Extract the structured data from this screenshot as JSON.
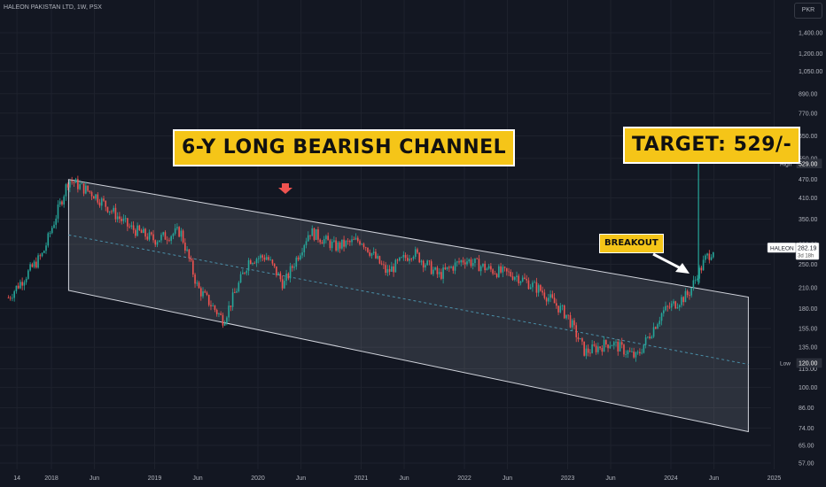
{
  "header": {
    "title": "HALEON PAKISTAN LTD, 1W, PSX",
    "currency": "PKR"
  },
  "annotations": {
    "channel_label": "6-Y LONG BEARISH CHANNEL",
    "target_label": "TARGET: 529/-",
    "breakout_label": "BREAKOUT"
  },
  "colors": {
    "background": "#131722",
    "up": "#26a69a",
    "down": "#ef5350",
    "highlight": "#f5c518",
    "channel": "#d1d4dc"
  },
  "chart_data": {
    "type": "candlestick",
    "symbol": "HALEON",
    "interval": "1W",
    "scale": "log",
    "ylim": [
      55,
      1500
    ],
    "y_ticks": [
      57,
      65,
      74,
      86,
      100,
      115,
      135,
      155,
      180,
      210,
      250,
      290,
      350,
      410,
      470,
      550,
      650,
      770,
      890,
      1050,
      1200,
      1400
    ],
    "y_tick_labels": [
      "57.00",
      "65.00",
      "74.00",
      "86.00",
      "100.00",
      "115.00",
      "135.00",
      "155.00",
      "180.00",
      "210.00",
      "250.00",
      "290.00",
      "350.00",
      "410.00",
      "470.00",
      "550.00",
      "650.00",
      "770.00",
      "890.00",
      "1,050.00",
      "1,200.00",
      "1,400.00"
    ],
    "x_ticks": [
      "14",
      "2018",
      "Jun",
      "2019",
      "Jun",
      "2020",
      "Jun",
      "2021",
      "Jun",
      "2022",
      "Jun",
      "2023",
      "Jun",
      "2024",
      "Jun",
      "2025"
    ],
    "markers": [
      {
        "label": "High",
        "value": "529.00"
      },
      {
        "label": "Low",
        "value": "120.00"
      }
    ],
    "last_price": {
      "symbol": "HALEON",
      "value": "282.19",
      "countdown": "3d 18h"
    },
    "approx_close_path": [
      {
        "t": "2017-08",
        "close": 195
      },
      {
        "t": "2017-12",
        "close": 270
      },
      {
        "t": "2018-03",
        "close": 470
      },
      {
        "t": "2018-06",
        "close": 420
      },
      {
        "t": "2018-10",
        "close": 330
      },
      {
        "t": "2019-01",
        "close": 300
      },
      {
        "t": "2019-04",
        "close": 320
      },
      {
        "t": "2019-06",
        "close": 210
      },
      {
        "t": "2019-09",
        "close": 165
      },
      {
        "t": "2019-12",
        "close": 260
      },
      {
        "t": "2020-02",
        "close": 265
      },
      {
        "t": "2020-04",
        "close": 215
      },
      {
        "t": "2020-07",
        "close": 320
      },
      {
        "t": "2020-10",
        "close": 285
      },
      {
        "t": "2021-01",
        "close": 300
      },
      {
        "t": "2021-04",
        "close": 235
      },
      {
        "t": "2021-07",
        "close": 275
      },
      {
        "t": "2021-10",
        "close": 230
      },
      {
        "t": "2022-01",
        "close": 260
      },
      {
        "t": "2022-04",
        "close": 240
      },
      {
        "t": "2022-07",
        "close": 230
      },
      {
        "t": "2022-10",
        "close": 205
      },
      {
        "t": "2023-01",
        "close": 170
      },
      {
        "t": "2023-03",
        "close": 130
      },
      {
        "t": "2023-06",
        "close": 140
      },
      {
        "t": "2023-09",
        "close": 125
      },
      {
        "t": "2023-12",
        "close": 175
      },
      {
        "t": "2024-03",
        "close": 200
      },
      {
        "t": "2024-05",
        "close": 260
      },
      {
        "t": "2024-06",
        "close": 282.19
      }
    ],
    "channel": {
      "upper_start": {
        "t": "2018-03",
        "price": 470
      },
      "upper_end": {
        "t": "2024-10",
        "price": 196
      },
      "lower_start": {
        "t": "2018-03",
        "price": 206
      },
      "lower_end": {
        "t": "2024-10",
        "price": 72
      }
    }
  }
}
